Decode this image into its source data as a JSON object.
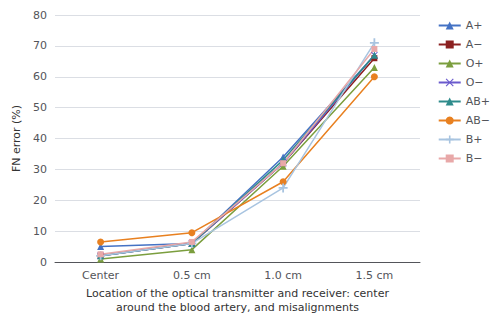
{
  "chart_data": {
    "type": "line",
    "categories": [
      "Center",
      "0.5 cm",
      "1.0 cm",
      "1.5 cm"
    ],
    "series": [
      {
        "name": "A+",
        "color": "#4472C4",
        "marker": "triangle",
        "values": [
          5.0,
          6.0,
          34.0,
          67.0
        ]
      },
      {
        "name": "A−",
        "color": "#8B2020",
        "marker": "square",
        "values": [
          2.0,
          6.0,
          32.0,
          66.0
        ]
      },
      {
        "name": "O+",
        "color": "#7B9E3E",
        "marker": "triangle",
        "values": [
          1.0,
          4.0,
          31.0,
          63.0
        ]
      },
      {
        "name": "O−",
        "color": "#6A5ACD",
        "marker": "x",
        "values": [
          2.0,
          6.0,
          32.0,
          67.0
        ]
      },
      {
        "name": "AB+",
        "color": "#2E8B8B",
        "marker": "triangle",
        "values": [
          2.0,
          6.0,
          33.0,
          67.0
        ]
      },
      {
        "name": "AB−",
        "color": "#E88020",
        "marker": "circle",
        "values": [
          6.5,
          9.5,
          26.0,
          60.0
        ]
      },
      {
        "name": "B+",
        "color": "#A8C4E0",
        "marker": "plus",
        "values": [
          2.0,
          6.0,
          24.0,
          71.0
        ]
      },
      {
        "name": "B−",
        "color": "#E8A8A8",
        "marker": "square",
        "values": [
          2.5,
          6.5,
          32.0,
          69.0
        ]
      }
    ],
    "ylabel": "FN error (%)",
    "xlabel": "Location of the optical transmitter and receiver: center\naround the blood artery, and misalignments",
    "ylim": [
      0,
      80
    ],
    "yticks": [
      0,
      10,
      20,
      30,
      40,
      50,
      60,
      70,
      80
    ],
    "grid": true,
    "legend": "right"
  }
}
